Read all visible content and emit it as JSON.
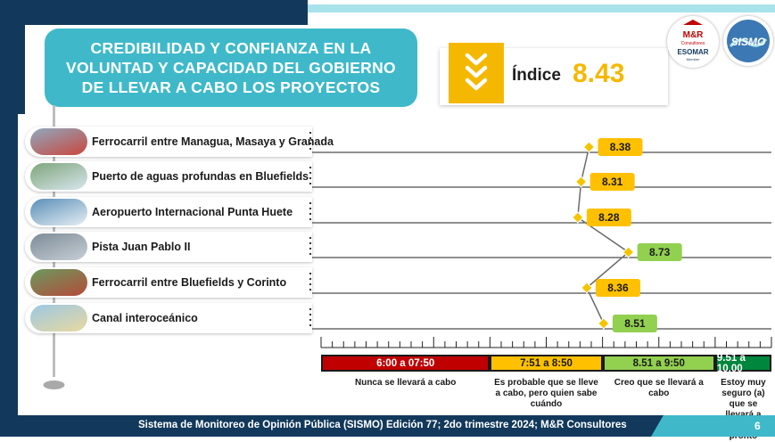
{
  "title": "CREDIBILIDAD Y CONFIANZA EN LA VOLUNTAD Y CAPACIDAD DEL GOBIERNO DE LLEVAR A CABO LOS PROYECTOS",
  "index": {
    "label": "Índice",
    "value": "8.43"
  },
  "logos": {
    "left_line1": "M&R",
    "left_line2": "Consultores",
    "left_line3": "ESOMAR",
    "left_line4": "Member",
    "right": "SISMO"
  },
  "colors": {
    "navy": "#12395b",
    "teal": "#3fb9c9",
    "yellow": "#f5b800",
    "orange_label": "#ffc000",
    "green_label": "#92d050",
    "red_range": "#c00000",
    "dark_green_range": "#00863d"
  },
  "chart_data": {
    "type": "line",
    "categories": [
      "Ferrocarril entre Managua, Masaya y Granada",
      "Puerto de aguas profundas en Bluefields",
      "Aeropuerto Internacional Punta Huete",
      "Pista Juan Pablo II",
      "Ferrocarril entre Bluefields y Corinto",
      "Canal interoceánico"
    ],
    "values": [
      8.38,
      8.31,
      8.28,
      8.73,
      8.36,
      8.51
    ],
    "value_labels": [
      "8.38",
      "8.31",
      "8.28",
      "8.73",
      "8.36",
      "8.51"
    ],
    "xlim": [
      6,
      10
    ],
    "ranges": [
      {
        "label": "6:00 a 07:50",
        "from": 6.0,
        "to": 7.5,
        "description": "Nunca se llevará a cabo"
      },
      {
        "label": "7:51 a 8:50",
        "from": 7.5,
        "to": 8.5,
        "description": "Es probable que se lleve a cabo, pero quien sabe cuándo"
      },
      {
        "label": "8.51 a 9:50",
        "from": 8.5,
        "to": 9.5,
        "description": "Creo que se llevará a cabo"
      },
      {
        "label": "9.51 a 10.00",
        "from": 9.5,
        "to": 10.0,
        "description": "Estoy muy seguro (a) que se llevará a cabo y pronto"
      }
    ]
  },
  "footer": {
    "text": "Sistema de Monitoreo de Opinión Pública (SISMO) Edición 77; 2do trimestre 2024; M&R Consultores",
    "page": "6"
  }
}
